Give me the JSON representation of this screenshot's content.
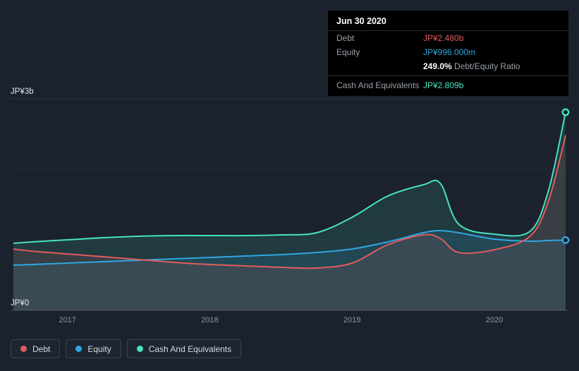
{
  "tooltip": {
    "date": "Jun 30 2020",
    "debt_label": "Debt",
    "debt_value": "JP¥2.480b",
    "equity_label": "Equity",
    "equity_value": "JP¥996.000m",
    "ratio_value": "249.0%",
    "ratio_label": "Debt/Equity Ratio",
    "cash_label": "Cash And Equivalents",
    "cash_value": "JP¥2.809b"
  },
  "legend": {
    "items": [
      {
        "label": "Debt",
        "color": "#e25c5c"
      },
      {
        "label": "Equity",
        "color": "#30a7e2"
      },
      {
        "label": "Cash And Equivalents",
        "color": "#47e2c2"
      }
    ]
  },
  "colors": {
    "background": "#1b222d",
    "tooltip_background": "#000000",
    "axis_tick_text": "#8d99a6",
    "axis_value_text": "#e3e9ef",
    "grid_top": "#2c3541",
    "grid_faint": "#222a35",
    "grid_baseline": "#454f5c"
  },
  "chart_data": {
    "type": "area",
    "x": [
      2016.62,
      2016.75,
      2017,
      2017.25,
      2017.5,
      2017.75,
      2018,
      2018.25,
      2018.5,
      2018.75,
      2019,
      2019.25,
      2019.5,
      2019.62,
      2019.75,
      2020,
      2020.25,
      2020.38,
      2020.5
    ],
    "series": [
      {
        "name": "Debt",
        "color": "#e25c5c",
        "end_marker": false,
        "values": [
          0.87,
          0.84,
          0.8,
          0.76,
          0.72,
          0.68,
          0.65,
          0.63,
          0.61,
          0.6,
          0.67,
          0.93,
          1.07,
          1.02,
          0.82,
          0.86,
          1.05,
          1.55,
          2.48
        ]
      },
      {
        "name": "Equity",
        "color": "#30a7e2",
        "end_marker": true,
        "values": [
          0.64,
          0.65,
          0.67,
          0.69,
          0.71,
          0.73,
          0.75,
          0.77,
          0.79,
          0.82,
          0.87,
          0.97,
          1.1,
          1.13,
          1.1,
          1.01,
          0.98,
          0.99,
          0.996
        ]
      },
      {
        "name": "Cash And Equivalents",
        "color": "#47e2c2",
        "end_marker": true,
        "values": [
          0.95,
          0.97,
          1.0,
          1.03,
          1.05,
          1.06,
          1.06,
          1.06,
          1.07,
          1.1,
          1.32,
          1.62,
          1.78,
          1.8,
          1.22,
          1.08,
          1.12,
          1.7,
          2.809
        ]
      }
    ],
    "xlim": [
      2016.6,
      2020.52
    ],
    "ylim": [
      0,
      3
    ],
    "y_gridlines": [
      0,
      1,
      2,
      3
    ],
    "y_axis_labels": [
      {
        "value": 3,
        "label": "JP¥3b"
      },
      {
        "value": 0,
        "label": "JP¥0"
      }
    ],
    "x_ticks": [
      {
        "value": 2017,
        "label": "2017"
      },
      {
        "value": 2018,
        "label": "2018"
      },
      {
        "value": 2019,
        "label": "2019"
      },
      {
        "value": 2020,
        "label": "2020"
      }
    ],
    "grid": true,
    "legend_position": "bottom-left",
    "currency_unit": "JP¥ billions"
  }
}
